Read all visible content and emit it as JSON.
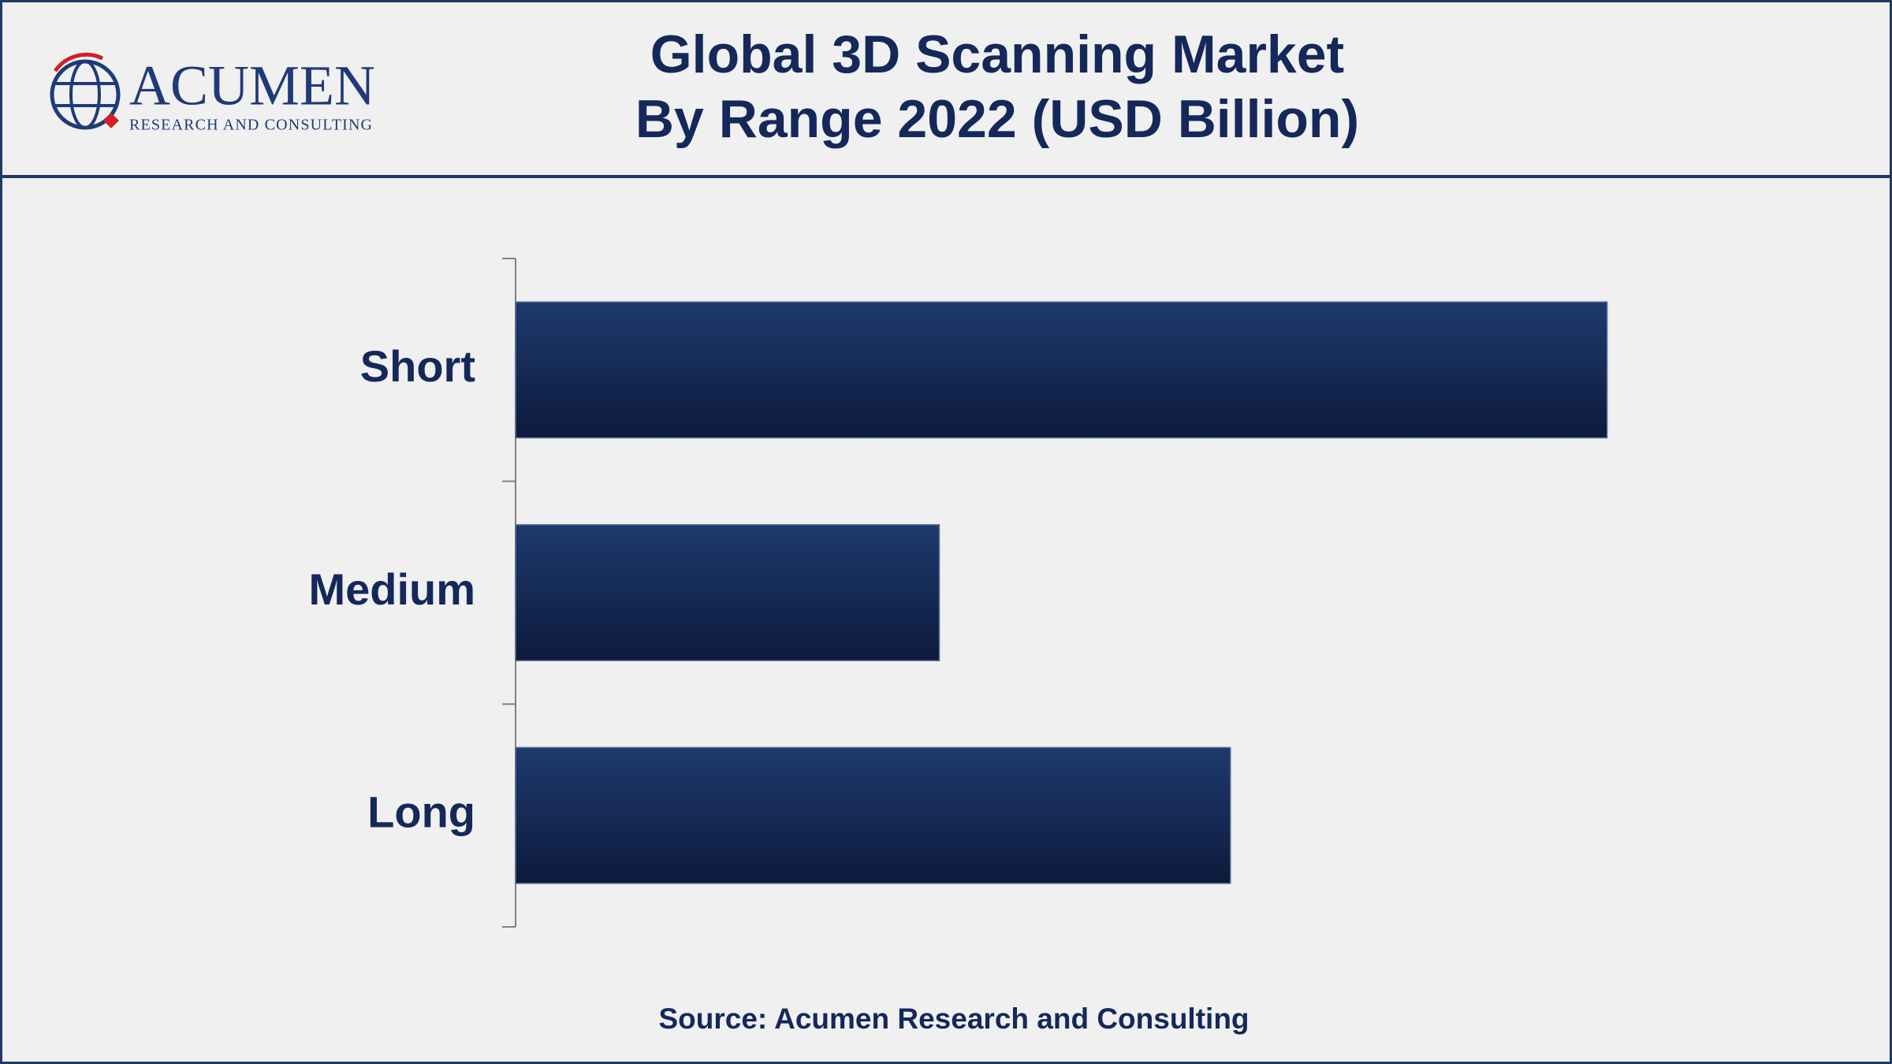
{
  "logo": {
    "name": "ACUMEN",
    "tagline": "RESEARCH AND CONSULTING"
  },
  "chart_data": {
    "type": "hbar",
    "title": [
      "Global 3D Scanning Market",
      "By Range 2022 (USD Billion)"
    ],
    "categories": [
      "Short",
      "Medium",
      "Long"
    ],
    "values": [
      2.55,
      0.99,
      1.67
    ],
    "color": "#1b3263",
    "xlim": [
      0,
      3
    ],
    "source": "Source: Acumen Research and Consulting"
  }
}
